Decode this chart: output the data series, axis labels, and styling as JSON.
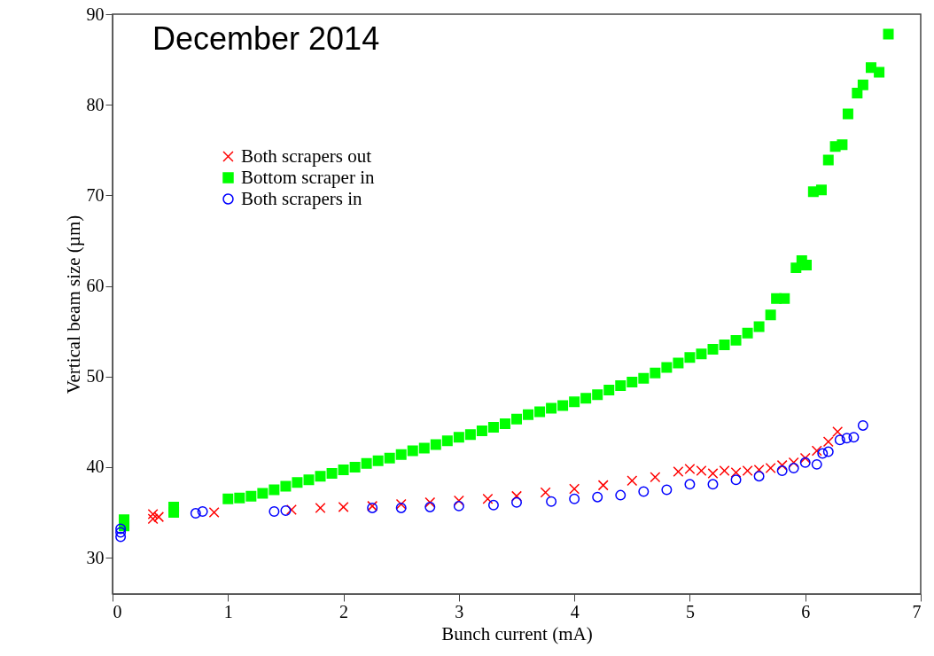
{
  "chart_data": {
    "type": "scatter",
    "xlabel": "Bunch current (mA)",
    "ylabel": "Vertical beam size (µm)",
    "annotations": [
      "December 2014"
    ],
    "xlim": [
      0,
      7
    ],
    "xticks": [
      0,
      1,
      2,
      3,
      4,
      5,
      6,
      7
    ],
    "ylim": [
      26,
      90
    ],
    "yticks": [
      30,
      40,
      50,
      60,
      70,
      80,
      90
    ],
    "grid": false,
    "legend": "top left",
    "series": [
      {
        "name": "Both scrapers out",
        "color": "#ff0000",
        "marker": "cross",
        "x": [
          0.35,
          0.35,
          0.4,
          0.88,
          1.55,
          1.8,
          2.0,
          2.25,
          2.5,
          2.75,
          3.0,
          3.25,
          3.5,
          3.75,
          4.0,
          4.25,
          4.5,
          4.7,
          4.9,
          5.0,
          5.1,
          5.2,
          5.3,
          5.4,
          5.5,
          5.6,
          5.7,
          5.8,
          5.9,
          6.0,
          6.1,
          6.2,
          6.28
        ],
        "values": [
          34.3,
          34.8,
          34.5,
          35.0,
          35.3,
          35.5,
          35.6,
          35.7,
          35.9,
          36.1,
          36.3,
          36.5,
          36.8,
          37.2,
          37.6,
          38.0,
          38.5,
          38.9,
          39.5,
          39.8,
          39.6,
          39.3,
          39.6,
          39.4,
          39.6,
          39.7,
          39.9,
          40.2,
          40.5,
          41.0,
          41.8,
          42.8,
          43.9
        ]
      },
      {
        "name": "Bottom scraper in",
        "color": "#00ff00",
        "marker": "square",
        "x": [
          0.1,
          0.1,
          0.53,
          0.53,
          1.0,
          1.1,
          1.2,
          1.3,
          1.4,
          1.5,
          1.6,
          1.7,
          1.8,
          1.9,
          2.0,
          2.1,
          2.2,
          2.3,
          2.4,
          2.5,
          2.6,
          2.7,
          2.8,
          2.9,
          3.0,
          3.1,
          3.2,
          3.3,
          3.4,
          3.5,
          3.6,
          3.7,
          3.8,
          3.9,
          4.0,
          4.1,
          4.2,
          4.3,
          4.4,
          4.5,
          4.6,
          4.7,
          4.8,
          4.9,
          5.0,
          5.1,
          5.2,
          5.3,
          5.4,
          5.5,
          5.6,
          5.7,
          5.75,
          5.82,
          5.92,
          5.97,
          6.01,
          6.07,
          6.14,
          6.2,
          6.26,
          6.32,
          6.37,
          6.45,
          6.5,
          6.57,
          6.64,
          6.72
        ],
        "values": [
          33.5,
          34.2,
          35.0,
          35.6,
          36.5,
          36.6,
          36.8,
          37.1,
          37.5,
          37.9,
          38.3,
          38.6,
          39.0,
          39.3,
          39.7,
          40.0,
          40.4,
          40.7,
          41.0,
          41.4,
          41.8,
          42.1,
          42.5,
          42.9,
          43.3,
          43.6,
          44.0,
          44.4,
          44.8,
          45.3,
          45.8,
          46.1,
          46.5,
          46.8,
          47.2,
          47.6,
          48.0,
          48.5,
          49.0,
          49.4,
          49.8,
          50.4,
          51.0,
          51.5,
          52.1,
          52.5,
          53.0,
          53.5,
          54.0,
          54.8,
          55.5,
          56.8,
          58.6,
          58.6,
          62.0,
          62.8,
          62.3,
          70.4,
          70.6,
          73.9,
          75.4,
          75.6,
          79.0,
          81.3,
          82.2,
          84.1,
          83.6,
          87.8
        ]
      },
      {
        "name": "Both scrapers in",
        "color": "#0000ff",
        "marker": "circle",
        "x": [
          0.07,
          0.07,
          0.07,
          0.72,
          0.78,
          1.4,
          1.5,
          2.25,
          2.5,
          2.75,
          3.0,
          3.3,
          3.5,
          3.8,
          4.0,
          4.2,
          4.4,
          4.6,
          4.8,
          5.0,
          5.2,
          5.4,
          5.6,
          5.8,
          5.9,
          6.0,
          6.1,
          6.15,
          6.2,
          6.3,
          6.36,
          6.42,
          6.5
        ],
        "values": [
          32.3,
          32.8,
          33.2,
          34.9,
          35.1,
          35.1,
          35.2,
          35.5,
          35.5,
          35.6,
          35.7,
          35.8,
          36.1,
          36.2,
          36.5,
          36.7,
          36.9,
          37.3,
          37.5,
          38.1,
          38.1,
          38.6,
          39.0,
          39.6,
          39.9,
          40.5,
          40.3,
          41.5,
          41.7,
          43.0,
          43.2,
          43.3,
          44.6
        ]
      }
    ]
  }
}
